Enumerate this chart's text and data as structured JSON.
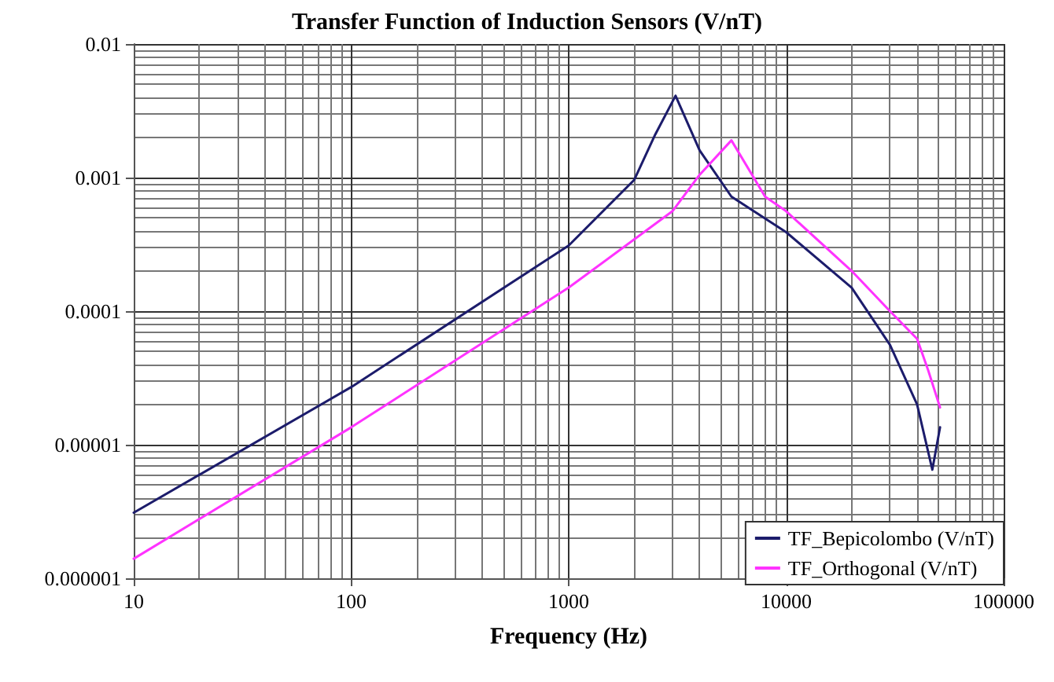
{
  "chart_data": {
    "type": "line",
    "title": "Transfer Function of Induction Sensors (V/nT)",
    "xlabel": "Frequency (Hz)",
    "log": "xy",
    "grid": true,
    "legend": "bottom right",
    "marker": "none",
    "line_style": "solid",
    "xlim": [
      10,
      100000
    ],
    "xticks": [
      10,
      100,
      1000,
      10000,
      100000
    ],
    "ylim": [
      1e-06,
      0.01
    ],
    "yticks": [
      {
        "value": 1e-06,
        "label": "0.000001"
      },
      {
        "value": 1e-05,
        "label": "0.00001"
      },
      0.0001,
      0.001,
      0.01
    ],
    "series": [
      {
        "name": "TF_Bepicolombo (V/nT)",
        "color": "#1c1c6b",
        "x": [
          10,
          100,
          1000,
          2000,
          2500,
          3100,
          4000,
          5600,
          10000,
          20000,
          30000,
          40000,
          47000,
          51000
        ],
        "values": [
          3.1e-06,
          2.7e-05,
          0.00031,
          0.00096,
          0.0021,
          0.0041,
          0.0016,
          0.00072,
          0.00039,
          0.00015,
          5.6e-05,
          2e-05,
          6.5e-06,
          1.35e-05
        ]
      },
      {
        "name": "TF_Orthogonal (V/nT)",
        "color": "#ff33ff",
        "x": [
          10,
          100,
          1000,
          3000,
          4000,
          5600,
          8000,
          10000,
          20000,
          30000,
          40000,
          45000,
          51000
        ],
        "values": [
          1.4e-06,
          1.35e-05,
          0.00015,
          0.00056,
          0.00105,
          0.0019,
          0.00072,
          0.00056,
          0.0002,
          0.0001,
          6.2e-05,
          3.6e-05,
          1.9e-05
        ]
      }
    ]
  }
}
